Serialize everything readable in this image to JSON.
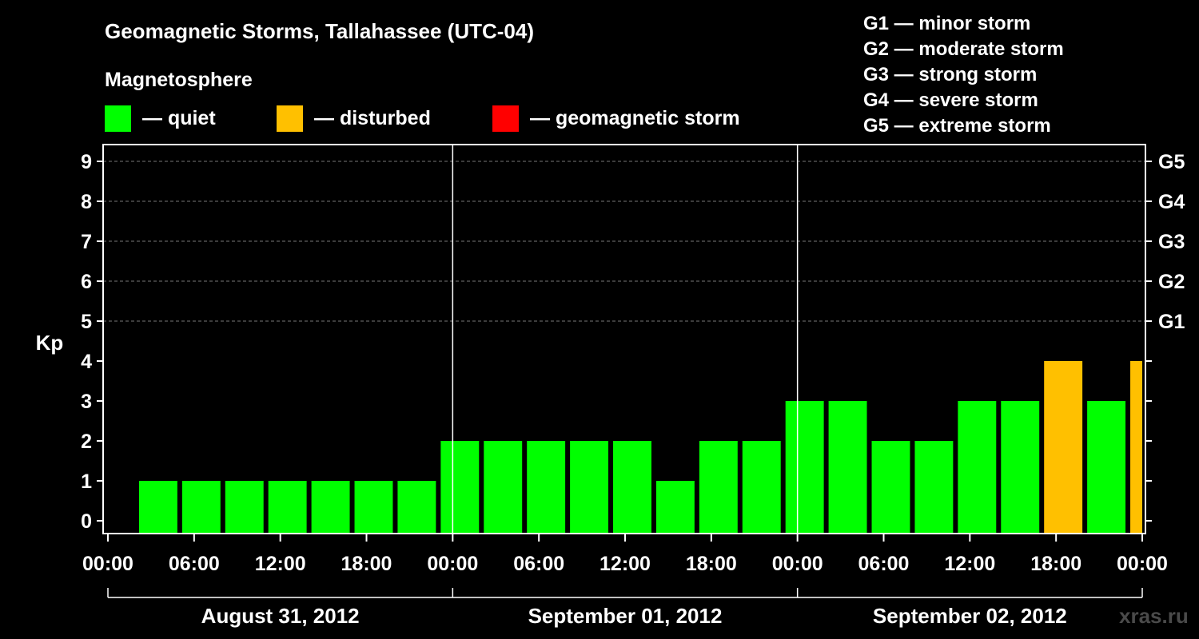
{
  "header": {
    "title": "Geomagnetic Storms, Tallahassee (UTC-04)",
    "magnetosphere_label": "Magnetosphere"
  },
  "legend": {
    "items": [
      {
        "label": "— quiet",
        "color": "#00ff00"
      },
      {
        "label": "— disturbed",
        "color": "#ffc000"
      },
      {
        "label": "— geomagnetic storm",
        "color": "#ff0000"
      }
    ]
  },
  "g_scale": [
    "G1 — minor storm",
    "G2 — moderate storm",
    "G3 — strong storm",
    "G4 — severe storm",
    "G5 — extreme storm"
  ],
  "watermark": "xras.ru",
  "chart_data": {
    "type": "bar",
    "ylabel": "Kp",
    "ylim": [
      0,
      9
    ],
    "yticks": [
      "0",
      "1",
      "2",
      "3",
      "4",
      "5",
      "6",
      "7",
      "8",
      "9"
    ],
    "right_ticks": [
      {
        "kp": 5,
        "label": "G1"
      },
      {
        "kp": 6,
        "label": "G2"
      },
      {
        "kp": 7,
        "label": "G3"
      },
      {
        "kp": 8,
        "label": "G4"
      },
      {
        "kp": 9,
        "label": "G5"
      }
    ],
    "grid_lines_kp": [
      5,
      6,
      7,
      8,
      9
    ],
    "xlim_hours": [
      0,
      72
    ],
    "xticks": [
      {
        "hour": 0,
        "label": "00:00"
      },
      {
        "hour": 6,
        "label": "06:00"
      },
      {
        "hour": 12,
        "label": "12:00"
      },
      {
        "hour": 18,
        "label": "18:00"
      },
      {
        "hour": 24,
        "label": "00:00"
      },
      {
        "hour": 30,
        "label": "06:00"
      },
      {
        "hour": 36,
        "label": "12:00"
      },
      {
        "hour": 42,
        "label": "18:00"
      },
      {
        "hour": 48,
        "label": "00:00"
      },
      {
        "hour": 54,
        "label": "06:00"
      },
      {
        "hour": 60,
        "label": "12:00"
      },
      {
        "hour": 66,
        "label": "18:00"
      },
      {
        "hour": 72,
        "label": "00:00"
      }
    ],
    "days": [
      {
        "label": "August 31, 2012",
        "start_hour": 0,
        "end_hour": 24
      },
      {
        "label": "September 01, 2012",
        "start_hour": 24,
        "end_hour": 48
      },
      {
        "label": "September 02, 2012",
        "start_hour": 48,
        "end_hour": 72
      }
    ],
    "bars": [
      {
        "start_hour": 2,
        "kp": 1,
        "status": "quiet"
      },
      {
        "start_hour": 5,
        "kp": 1,
        "status": "quiet"
      },
      {
        "start_hour": 8,
        "kp": 1,
        "status": "quiet"
      },
      {
        "start_hour": 11,
        "kp": 1,
        "status": "quiet"
      },
      {
        "start_hour": 14,
        "kp": 1,
        "status": "quiet"
      },
      {
        "start_hour": 17,
        "kp": 1,
        "status": "quiet"
      },
      {
        "start_hour": 20,
        "kp": 1,
        "status": "quiet"
      },
      {
        "start_hour": 23,
        "kp": 2,
        "status": "quiet"
      },
      {
        "start_hour": 26,
        "kp": 2,
        "status": "quiet"
      },
      {
        "start_hour": 29,
        "kp": 2,
        "status": "quiet"
      },
      {
        "start_hour": 32,
        "kp": 2,
        "status": "quiet"
      },
      {
        "start_hour": 35,
        "kp": 2,
        "status": "quiet"
      },
      {
        "start_hour": 38,
        "kp": 1,
        "status": "quiet"
      },
      {
        "start_hour": 41,
        "kp": 2,
        "status": "quiet"
      },
      {
        "start_hour": 44,
        "kp": 2,
        "status": "quiet"
      },
      {
        "start_hour": 47,
        "kp": 3,
        "status": "quiet"
      },
      {
        "start_hour": 50,
        "kp": 3,
        "status": "quiet"
      },
      {
        "start_hour": 53,
        "kp": 2,
        "status": "quiet"
      },
      {
        "start_hour": 56,
        "kp": 2,
        "status": "quiet"
      },
      {
        "start_hour": 59,
        "kp": 3,
        "status": "quiet"
      },
      {
        "start_hour": 62,
        "kp": 3,
        "status": "quiet"
      },
      {
        "start_hour": 65,
        "kp": 4,
        "status": "disturbed"
      },
      {
        "start_hour": 68,
        "kp": 3,
        "status": "quiet"
      },
      {
        "start_hour": 71,
        "kp": 4,
        "status": "disturbed"
      }
    ],
    "status_colors": {
      "quiet": "#00ff00",
      "disturbed": "#ffc000",
      "storm": "#ff0000"
    }
  }
}
